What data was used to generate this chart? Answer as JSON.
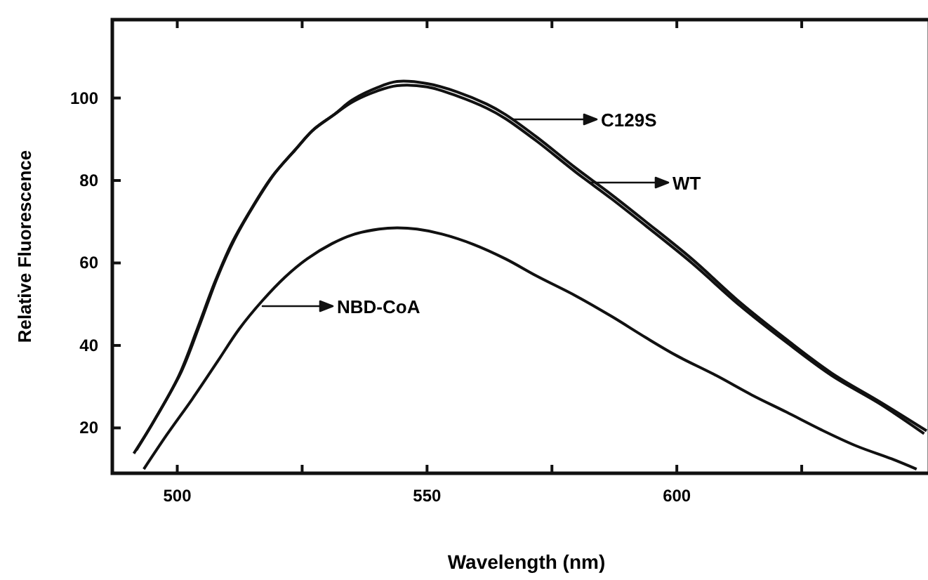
{
  "chart_data": {
    "type": "line",
    "xlabel": "Wavelength (nm)",
    "ylabel": "Relative Fluorescence",
    "xlim": [
      487,
      650
    ],
    "ylim": [
      9,
      119
    ],
    "xticks": [
      500,
      {
        "value": 525,
        "label": null
      },
      550,
      {
        "value": 575,
        "label": null
      },
      600,
      {
        "value": 625,
        "label": null
      }
    ],
    "yticks": [
      20,
      40,
      60,
      80,
      100
    ],
    "grid": false,
    "marker": "none",
    "line_style": "solid",
    "series": [
      {
        "color": "#111111",
        "x": [
          491.3,
          495,
          500.3,
          504,
          507.6,
          511,
          515,
          519,
          523.6,
          527,
          531,
          535,
          540,
          544,
          550,
          556,
          562,
          565.7,
          572,
          579.8,
          587,
          593.8,
          603,
          612.6,
          621.9,
          631,
          640.7,
          649.5
        ],
        "values": [
          13.8,
          21,
          32.6,
          44,
          55.6,
          65,
          73.5,
          81,
          87.4,
          92,
          95.6,
          99,
          101.7,
          103,
          102.7,
          100.5,
          97.5,
          95,
          89.5,
          82,
          75.5,
          69,
          60,
          49.7,
          40.8,
          32.7,
          25.8,
          18.6
        ]
      },
      {
        "color": "#111111",
        "x": [
          491.8,
          495.5,
          500.8,
          504.5,
          508,
          511.5,
          515.5,
          519.5,
          524,
          527.5,
          531.5,
          535,
          540,
          544,
          550,
          556,
          562,
          565.7,
          572,
          579.8,
          587,
          593.8,
          603,
          612.6,
          621.9,
          631,
          640.7,
          650
        ],
        "values": [
          14.6,
          22,
          33.6,
          45,
          56.4,
          65.8,
          74.3,
          81.7,
          88,
          92.6,
          96.1,
          99.5,
          102.5,
          104,
          103.5,
          101.5,
          98.5,
          96,
          90.5,
          83,
          76.5,
          70,
          61,
          50.5,
          41.5,
          33.3,
          26.3,
          19.3
        ]
      },
      {
        "color": "#111111",
        "x": [
          493.3,
          498,
          503,
          508,
          512.4,
          517,
          521.6,
          526,
          531,
          535,
          540.4,
          544,
          548,
          553,
          559.3,
          565.7,
          572,
          579.8,
          587,
          593.8,
          600,
          607.9,
          615,
          622,
          629,
          636,
          643,
          648
        ],
        "values": [
          10,
          18.5,
          27,
          36,
          44,
          50.8,
          56.6,
          61,
          64.7,
          66.8,
          68.2,
          68.5,
          68.2,
          67,
          64.5,
          61,
          56.8,
          52,
          47,
          41.9,
          37.5,
          32.7,
          28,
          23.8,
          19.5,
          15.6,
          12.5,
          10
        ]
      }
    ],
    "annotations": [
      "C129S",
      "WT",
      "NBD-CoA"
    ]
  }
}
